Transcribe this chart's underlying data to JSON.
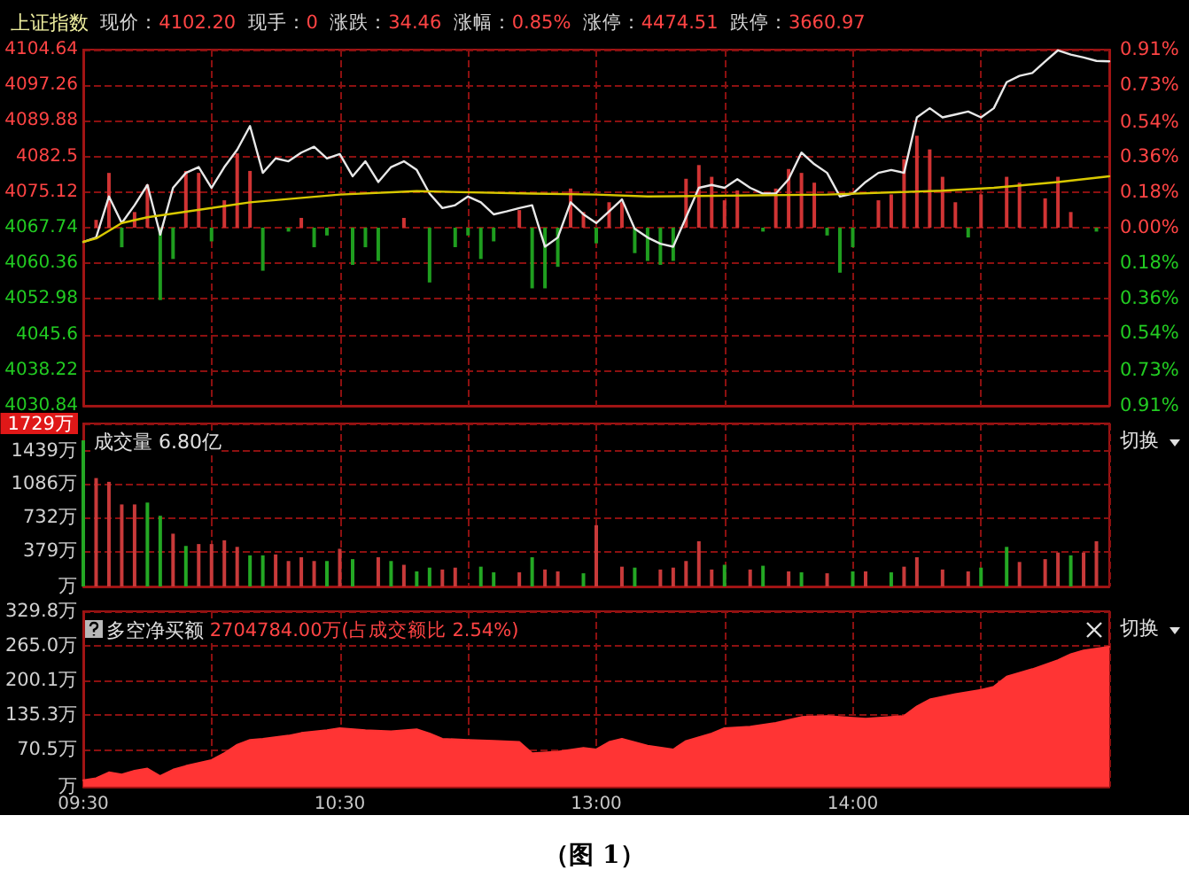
{
  "chart_data": [
    {
      "type": "line",
      "title": "上证指数",
      "annotations": [
        "现价：4102.20",
        "现手：0",
        "涨跌：34.46",
        "涨幅：0.85%",
        "涨停：4474.51",
        "跌停：3660.97"
      ],
      "marker": "none",
      "grid": true,
      "categories": [
        null,
        null,
        null,
        null,
        null,
        null,
        null,
        null,
        null,
        null,
        null,
        null,
        null,
        null,
        null,
        null,
        null,
        null,
        null,
        null,
        null,
        null,
        null,
        null,
        null,
        null,
        null,
        null,
        null,
        null,
        null,
        null,
        null,
        null,
        null,
        null,
        null,
        null,
        null,
        null,
        null,
        null,
        null,
        null,
        null,
        null,
        null,
        null,
        null,
        null,
        null,
        null,
        null,
        null,
        null,
        null,
        null,
        null,
        null,
        null,
        null,
        null,
        null,
        null,
        null,
        null,
        null,
        null,
        null,
        null,
        null,
        null,
        null,
        null,
        null,
        null,
        null,
        null,
        null,
        null,
        null
      ],
      "ylim": [
        4030.84,
        4104.64
      ],
      "yticks": [
        4030.84,
        4038.22,
        4045.6,
        4052.98,
        4060.36,
        4067.74,
        4075.12,
        4082.5,
        4089.88,
        4097.26,
        4104.64
      ],
      "y2lim": [
        -0.91,
        0.91
      ],
      "y2ticks": [
        {
          "value": -0.91,
          "label": "0.91%"
        },
        {
          "value": -0.73,
          "label": "0.73%"
        },
        {
          "value": -0.54,
          "label": "0.54%"
        },
        {
          "value": -0.36,
          "label": "0.36%"
        },
        {
          "value": -0.18,
          "label": "0.18%"
        },
        {
          "value": 0,
          "label": "0.00%"
        },
        {
          "value": 0.18,
          "label": "0.18%"
        },
        {
          "value": 0.36,
          "label": "0.36%"
        },
        {
          "value": 0.54,
          "label": "0.54%"
        },
        {
          "value": 0.73,
          "label": "0.73%"
        },
        {
          "value": 0.91,
          "label": "0.91%"
        }
      ],
      "series": [
        {
          "type": "bar",
          "axis": "y2",
          "color": "#d03434",
          "values": [
            null,
            0.04,
            0.28,
            -0.1,
            0.08,
            0.22,
            -0.37,
            -0.16,
            0.29,
            0.28,
            -0.07,
            0.14,
            0.38,
            0.29,
            -0.22,
            null,
            -0.02,
            0.05,
            -0.1,
            -0.04,
            null,
            -0.19,
            -0.1,
            -0.17,
            null,
            0.05,
            null,
            -0.28,
            null,
            -0.1,
            -0.04,
            -0.16,
            -0.07,
            null,
            0.09,
            -0.31,
            -0.31,
            -0.2,
            0.2,
            0.08,
            -0.08,
            0.13,
            0.13,
            -0.13,
            -0.17,
            -0.19,
            -0.17,
            0.25,
            0.32,
            0.26,
            0.14,
            0.19,
            null,
            -0.02,
            0.2,
            0.3,
            0.28,
            0.23,
            -0.04,
            -0.23,
            -0.1,
            null,
            0.14,
            0.17,
            0.35,
            0.47,
            0.4,
            0.26,
            0.13,
            -0.05,
            0.17,
            null,
            0.26,
            0.23,
            null,
            0.15,
            0.26,
            0.08,
            null,
            -0.02,
            null
          ],
          "colors": [
            null,
            "#d03434",
            "#d03434",
            "#1f9e1f",
            "#d03434",
            "#d03434",
            "#1f9e1f",
            "#1f9e1f",
            "#d03434",
            "#d03434",
            "#1f9e1f",
            "#d03434",
            "#d03434",
            "#d03434",
            "#1f9e1f",
            null,
            "#1f9e1f",
            "#d03434",
            "#1f9e1f",
            "#1f9e1f",
            null,
            "#1f9e1f",
            "#1f9e1f",
            "#1f9e1f",
            null,
            "#d03434",
            null,
            "#1f9e1f",
            null,
            "#1f9e1f",
            "#1f9e1f",
            "#1f9e1f",
            "#1f9e1f",
            null,
            "#d03434",
            "#1f9e1f",
            "#1f9e1f",
            "#1f9e1f",
            "#d03434",
            "#d03434",
            "#1f9e1f",
            "#d03434",
            "#d03434",
            "#1f9e1f",
            "#1f9e1f",
            "#1f9e1f",
            "#1f9e1f",
            "#d03434",
            "#d03434",
            "#d03434",
            "#d03434",
            "#d03434",
            null,
            "#1f9e1f",
            "#d03434",
            "#d03434",
            "#d03434",
            "#d03434",
            "#1f9e1f",
            "#1f9e1f",
            "#1f9e1f",
            null,
            "#d03434",
            "#d03434",
            "#d03434",
            "#d03434",
            "#d03434",
            "#d03434",
            "#d03434",
            "#1f9e1f",
            "#d03434",
            null,
            "#d03434",
            "#d03434",
            null,
            "#d03434",
            "#d03434",
            "#d03434",
            null,
            "#1f9e1f",
            null
          ]
        },
        {
          "color": "#e8e8e8",
          "values": [
            4064.8,
            4065.7,
            4074.2,
            4068.7,
            4072.4,
            4076.6,
            4066.3,
            4076.0,
            4079.1,
            4080.3,
            4076.0,
            4080.3,
            4083.9,
            4088.8,
            4079.1,
            4082.1,
            4081.5,
            4083.3,
            4084.5,
            4082.1,
            4083.0,
            4078.4,
            4081.5,
            4077.2,
            4080.3,
            4081.5,
            4079.7,
            4074.8,
            4071.8,
            4072.4,
            4074.2,
            4073.0,
            4070.5,
            4071.1,
            4071.8,
            4072.4,
            4063.8,
            4065.7,
            4073.0,
            4070.5,
            4068.7,
            4071.1,
            4073.6,
            4067.5,
            4065.7,
            4064.4,
            4063.8,
            4069.9,
            4076.0,
            4076.6,
            4076.0,
            4077.8,
            4076.0,
            4074.8,
            4074.8,
            4077.8,
            4083.3,
            4080.9,
            4079.1,
            4074.2,
            4074.8,
            4077.2,
            4079.1,
            4079.7,
            4079.1,
            4090.6,
            4092.5,
            4090.6,
            4091.2,
            4091.8,
            4090.6,
            4092.5,
            4097.9,
            4099.2,
            4099.8,
            4102.2,
            4104.5,
            4103.6,
            4103.0,
            4102.3,
            4102.2
          ]
        },
        {
          "color": "#d8c800",
          "values": [
            4064.8,
            4065.5,
            null,
            4068.7,
            null,
            4069.9,
            null,
            null,
            null,
            null,
            null,
            null,
            null,
            4073.0,
            null,
            null,
            null,
            null,
            null,
            null,
            4074.6,
            null,
            null,
            null,
            null,
            null,
            4075.3,
            null,
            null,
            null,
            null,
            null,
            null,
            null,
            null,
            4074.8,
            null,
            null,
            null,
            null,
            4074.6,
            null,
            null,
            null,
            4074.2,
            null,
            null,
            null,
            null,
            null,
            null,
            null,
            null,
            null,
            null,
            null,
            null,
            null,
            4074.6,
            null,
            null,
            null,
            null,
            null,
            null,
            null,
            null,
            4075.4,
            null,
            null,
            null,
            4076.0,
            null,
            null,
            null,
            null,
            4077.2,
            null,
            null,
            null,
            4078.4
          ]
        }
      ]
    },
    {
      "type": "bar",
      "title": "成交量 6.80亿",
      "annotations": [
        "切换"
      ],
      "grid": true,
      "categories": [
        null,
        null,
        null,
        null,
        null,
        null,
        null,
        null,
        null,
        null,
        null,
        null,
        null,
        null,
        null,
        null,
        null,
        null,
        null,
        null,
        null,
        null,
        null,
        null,
        null,
        null,
        null,
        null,
        null,
        null,
        null,
        null,
        null,
        null,
        null,
        null,
        null,
        null,
        null,
        null,
        null,
        null,
        null,
        null,
        null,
        null,
        null,
        null,
        null,
        null,
        null,
        null,
        null,
        null,
        null,
        null,
        null,
        null,
        null,
        null,
        null,
        null,
        null,
        null,
        null,
        null,
        null,
        null,
        null,
        null,
        null,
        null,
        null,
        null,
        null,
        null,
        null,
        null,
        null,
        null,
        null
      ],
      "ylim": [
        0,
        1729
      ],
      "yticks": [
        {
          "value": 0,
          "label": "万"
        },
        {
          "value": 379,
          "label": "379万"
        },
        {
          "value": 732,
          "label": "732万"
        },
        {
          "value": 1086,
          "label": "1086万"
        },
        {
          "value": 1439,
          "label": "1439万"
        },
        {
          "value": 1729,
          "label": "1729万"
        }
      ],
      "values": [
        1550,
        1150,
        1110,
        870,
        870,
        890,
        750,
        560,
        430,
        450,
        450,
        490,
        420,
        330,
        330,
        340,
        270,
        310,
        270,
        270,
        400,
        290,
        null,
        310,
        270,
        230,
        160,
        200,
        180,
        200,
        null,
        210,
        150,
        null,
        150,
        310,
        180,
        160,
        null,
        140,
        650,
        null,
        210,
        200,
        null,
        180,
        200,
        270,
        480,
        180,
        230,
        null,
        180,
        220,
        null,
        160,
        150,
        null,
        140,
        null,
        160,
        160,
        null,
        150,
        210,
        310,
        null,
        180,
        null,
        160,
        200,
        null,
        420,
        260,
        null,
        290,
        360,
        330,
        360,
        480,
        null
      ],
      "colors": [
        "#24a824",
        "#c83a3a",
        "#c83a3a",
        "#c83a3a",
        "#c83a3a",
        "#24a824",
        "#24a824",
        "#c83a3a",
        "#24a824",
        "#c83a3a",
        "#c83a3a",
        "#c83a3a",
        "#c83a3a",
        "#24a824",
        "#24a824",
        "#c83a3a",
        "#c83a3a",
        "#c83a3a",
        "#c83a3a",
        "#24a824",
        "#c83a3a",
        "#24a824",
        null,
        "#c83a3a",
        "#24a824",
        "#c83a3a",
        "#24a824",
        "#24a824",
        "#c83a3a",
        "#c83a3a",
        null,
        "#24a824",
        "#24a824",
        null,
        "#c83a3a",
        "#24a824",
        "#c83a3a",
        "#c83a3a",
        null,
        "#24a824",
        "#c83a3a",
        null,
        "#c83a3a",
        "#24a824",
        null,
        "#c83a3a",
        "#c83a3a",
        "#c83a3a",
        "#c83a3a",
        "#c83a3a",
        "#24a824",
        null,
        "#c83a3a",
        "#24a824",
        null,
        "#c83a3a",
        "#24a824",
        null,
        "#c83a3a",
        null,
        "#24a824",
        "#c83a3a",
        null,
        "#24a824",
        "#c83a3a",
        "#c83a3a",
        null,
        "#c83a3a",
        null,
        "#c83a3a",
        "#24a824",
        null,
        "#24a824",
        "#c83a3a",
        null,
        "#c83a3a",
        "#c83a3a",
        "#24a824",
        "#c83a3a",
        "#c83a3a",
        null
      ]
    },
    {
      "type": "area",
      "title": "多空净买额",
      "subtitle": "2704784.00万(占成交额比 2.54%)",
      "annotations": [
        "切换",
        "（图 1）"
      ],
      "grid": true,
      "color": "#ff3434",
      "categories": [
        "09:30",
        null,
        null,
        null,
        null,
        null,
        null,
        null,
        null,
        null,
        null,
        null,
        null,
        null,
        null,
        null,
        null,
        null,
        null,
        null,
        "10:30",
        null,
        null,
        null,
        null,
        null,
        null,
        null,
        null,
        null,
        null,
        null,
        null,
        null,
        null,
        null,
        null,
        null,
        null,
        null,
        "13:00",
        null,
        null,
        null,
        null,
        null,
        null,
        null,
        null,
        null,
        null,
        null,
        null,
        null,
        null,
        null,
        null,
        null,
        null,
        null,
        "14:00",
        null,
        null,
        null,
        null,
        null,
        null,
        null,
        null,
        null,
        null,
        null,
        null,
        null,
        null,
        null,
        null,
        null,
        null,
        null,
        null
      ],
      "ylim": [
        0,
        329.8
      ],
      "yticks": [
        {
          "value": 0,
          "label": "万"
        },
        {
          "value": 70.5,
          "label": "70.5万"
        },
        {
          "value": 135.3,
          "label": "135.3万"
        },
        {
          "value": 200.1,
          "label": "200.1万"
        },
        {
          "value": 265.0,
          "label": "265.0万"
        },
        {
          "value": 329.8,
          "label": "329.8万"
        }
      ],
      "values": [
        12,
        16,
        27,
        23,
        30,
        34,
        20,
        32,
        39,
        null,
        50,
        63,
        79,
        88,
        90,
        null,
        96,
        101,
        null,
        106,
        110,
        null,
        106,
        null,
        104,
        null,
        108,
        100,
        90,
        null,
        88,
        null,
        86,
        null,
        84,
        63,
        null,
        66,
        null,
        73,
        70,
        84,
        90,
        null,
        77,
        null,
        70,
        86,
        null,
        100,
        110,
        null,
        113,
        null,
        120,
        null,
        131,
        null,
        133,
        131,
        null,
        128,
        null,
        131,
        133,
        151,
        164,
        null,
        174,
        null,
        182,
        188,
        207,
        null,
        221,
        null,
        238,
        249,
        256,
        null,
        263
      ]
    }
  ]
}
